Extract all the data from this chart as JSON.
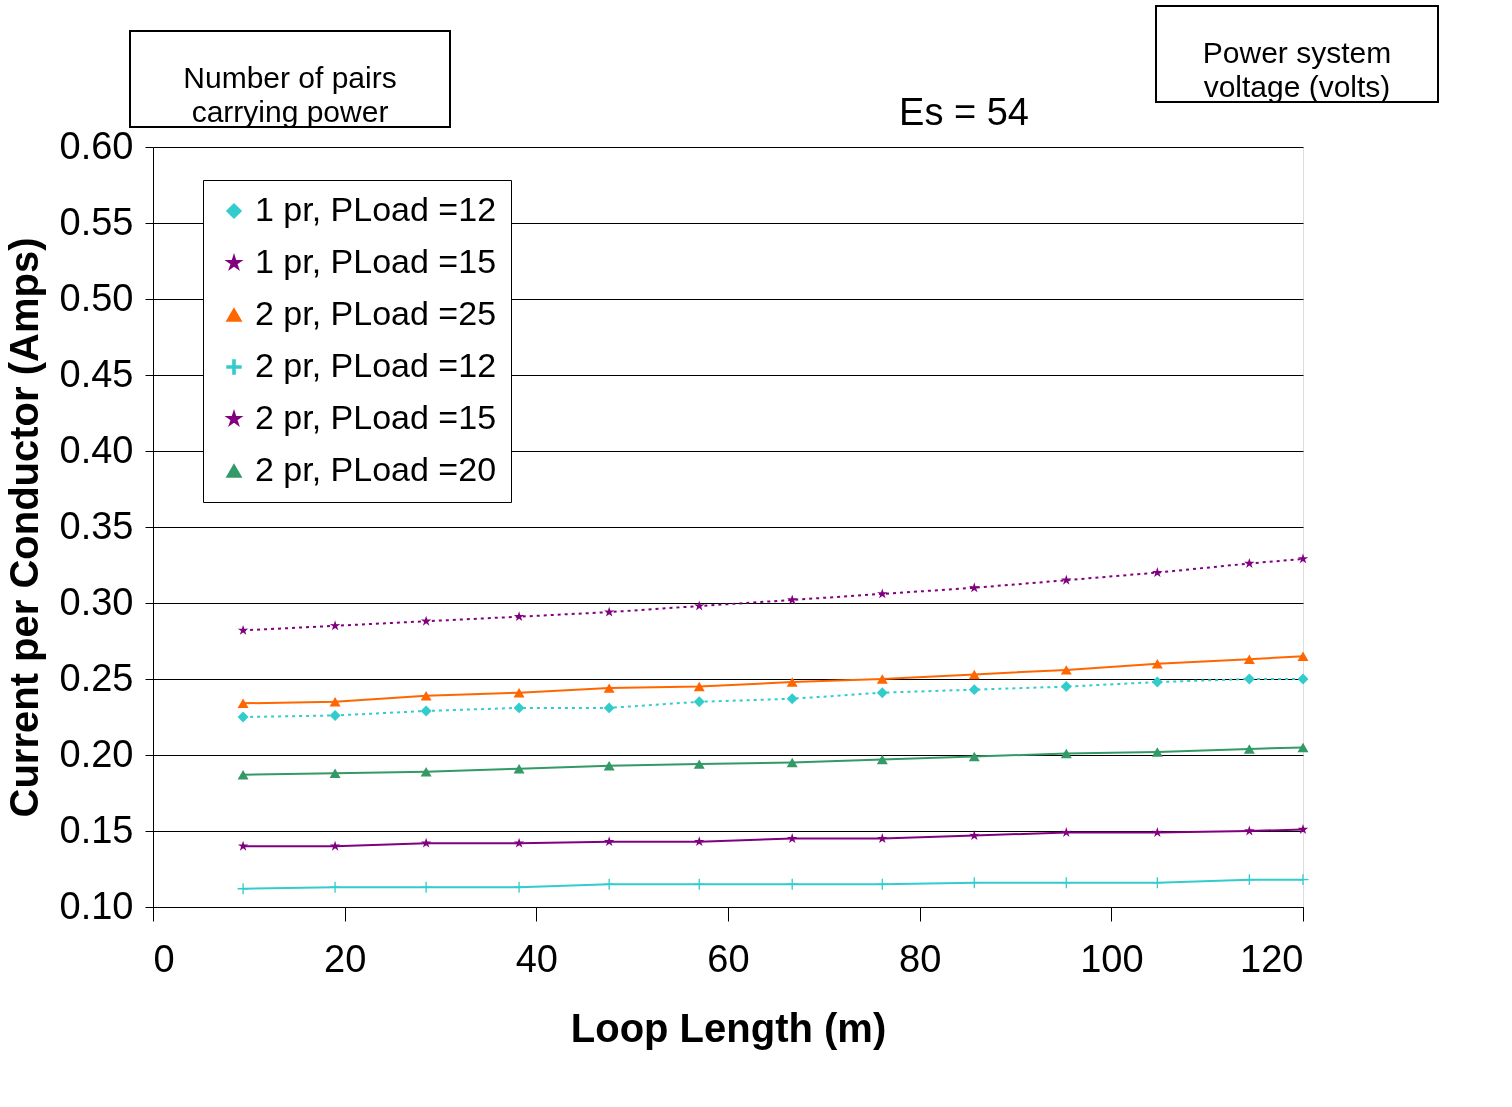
{
  "chart_data": {
    "type": "line",
    "xlabel": "Loop Length (m)",
    "ylabel": "Current per Conductor (Amps)",
    "annotations": [
      "Number of pairs carrying power",
      "Es = 54",
      "Power system voltage (volts)"
    ],
    "x": [
      9.4,
      19.0,
      28.5,
      38.2,
      47.6,
      57.0,
      66.7,
      76.1,
      85.7,
      95.3,
      104.8,
      114.4,
      120
    ],
    "series": [
      {
        "name": "1 pr, PLoad =12",
        "color": "#33cccc",
        "marker": "diamond",
        "line_style": "dotted",
        "values": [
          0.225,
          0.226,
          0.229,
          0.231,
          0.231,
          0.235,
          0.237,
          0.241,
          0.243,
          0.245,
          0.248,
          0.25,
          0.25
        ]
      },
      {
        "name": "1 pr, PLoad =15",
        "color": "#800080",
        "marker": "star",
        "line_style": "dotted",
        "values": [
          0.282,
          0.285,
          0.288,
          0.291,
          0.294,
          0.298,
          0.302,
          0.306,
          0.31,
          0.315,
          0.32,
          0.326,
          0.329
        ]
      },
      {
        "name": "2 pr, PLoad =25",
        "color": "#ff6600",
        "marker": "triangle",
        "line_style": "solid",
        "values": [
          0.234,
          0.235,
          0.239,
          0.241,
          0.244,
          0.245,
          0.248,
          0.25,
          0.253,
          0.256,
          0.26,
          0.263,
          0.265
        ]
      },
      {
        "name": "2 pr, PLoad =12",
        "color": "#33cccc",
        "marker": "cross",
        "line_style": "solid",
        "values": [
          0.112,
          0.113,
          0.113,
          0.113,
          0.115,
          0.115,
          0.115,
          0.115,
          0.116,
          0.116,
          0.116,
          0.118,
          0.118
        ]
      },
      {
        "name": "2 pr, PLoad =15",
        "color": "#800080",
        "marker": "star",
        "line_style": "solid",
        "values": [
          0.14,
          0.14,
          0.142,
          0.142,
          0.143,
          0.143,
          0.145,
          0.145,
          0.147,
          0.149,
          0.149,
          0.15,
          0.151
        ]
      },
      {
        "name": "2 pr, PLoad =20",
        "color": "#339966",
        "marker": "triangle",
        "line_style": "solid",
        "values": [
          0.187,
          0.188,
          0.189,
          0.191,
          0.193,
          0.194,
          0.195,
          0.197,
          0.199,
          0.201,
          0.202,
          0.204,
          0.205
        ]
      }
    ],
    "xlim": [
      0,
      120
    ],
    "xticks": [
      0,
      20,
      40,
      60,
      80,
      100,
      120
    ],
    "ylim": [
      0.1,
      0.6
    ],
    "yticks": [
      {
        "value": 0.1,
        "label": "0.10"
      },
      {
        "value": 0.15,
        "label": "0.15"
      },
      {
        "value": 0.2,
        "label": "0.20"
      },
      {
        "value": 0.25,
        "label": "0.25"
      },
      {
        "value": 0.3,
        "label": "0.30"
      },
      {
        "value": 0.35,
        "label": "0.35"
      },
      {
        "value": 0.4,
        "label": "0.40"
      },
      {
        "value": 0.45,
        "label": "0.45"
      },
      {
        "value": 0.5,
        "label": "0.50"
      },
      {
        "value": 0.55,
        "label": "0.55"
      },
      {
        "value": 0.6,
        "label": "0.60"
      }
    ],
    "grid": "y",
    "legend": "top left"
  }
}
